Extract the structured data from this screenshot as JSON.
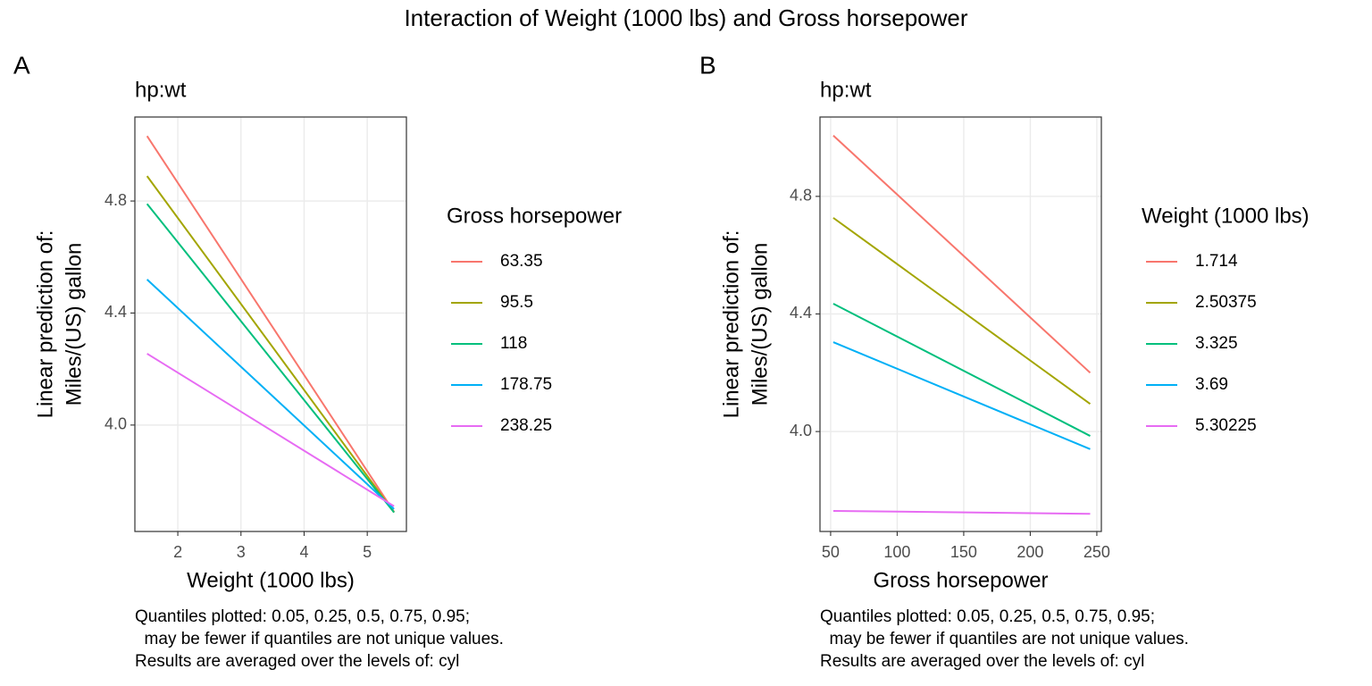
{
  "title": "Interaction of Weight (1000 lbs) and Gross horsepower",
  "chart_data": [
    {
      "type": "line",
      "tag": "A",
      "title": "hp:wt",
      "xlabel": "Weight (1000 lbs)",
      "ylabel": [
        "Linear prediction of:",
        "Miles/(US) gallon"
      ],
      "legend_title": "Gross horsepower",
      "grid": true,
      "xlim": [
        1.32,
        5.62
      ],
      "xticks": [
        2,
        3,
        4,
        5
      ],
      "ylim": [
        3.62,
        5.1
      ],
      "yticks": [
        {
          "value": 4.0,
          "label": "4.0"
        },
        {
          "value": 4.4,
          "label": "4.4"
        },
        {
          "value": 4.8,
          "label": "4.8"
        }
      ],
      "x": [
        1.513,
        5.424
      ],
      "series": [
        {
          "name": "63.35",
          "color": "#F8766D",
          "values": [
            5.032,
            3.69
          ]
        },
        {
          "name": "95.5",
          "color": "#A3A500",
          "values": [
            4.889,
            3.688
          ]
        },
        {
          "name": "118",
          "color": "#00BF7D",
          "values": [
            4.79,
            3.688
          ]
        },
        {
          "name": "178.75",
          "color": "#00B0F6",
          "values": [
            4.52,
            3.7
          ]
        },
        {
          "name": "238.25",
          "color": "#E76BF3",
          "values": [
            4.255,
            3.71
          ]
        }
      ],
      "caption": [
        "Quantiles plotted: 0.05, 0.25, 0.5, 0.75, 0.95;",
        "  may be fewer if quantiles are not unique values.",
        "Results are averaged over the levels of: cyl"
      ]
    },
    {
      "type": "line",
      "tag": "B",
      "title": "hp:wt",
      "xlabel": "Gross horsepower",
      "ylabel": [
        "Linear prediction of:",
        "Miles/(US) gallon"
      ],
      "legend_title": "Weight (1000 lbs)",
      "grid": true,
      "xlim": [
        42,
        253.4
      ],
      "xticks": [
        50,
        100,
        150,
        200,
        250
      ],
      "ylim": [
        3.66,
        5.07
      ],
      "yticks": [
        {
          "value": 4.0,
          "label": "4.0"
        },
        {
          "value": 4.4,
          "label": "4.4"
        },
        {
          "value": 4.8,
          "label": "4.8"
        }
      ],
      "x": [
        52,
        245
      ],
      "series": [
        {
          "name": "1.714",
          "color": "#F8766D",
          "values": [
            5.007,
            4.2
          ]
        },
        {
          "name": "2.50375",
          "color": "#A3A500",
          "values": [
            4.727,
            4.094
          ]
        },
        {
          "name": "3.325",
          "color": "#00BF7D",
          "values": [
            4.435,
            3.985
          ]
        },
        {
          "name": "3.69",
          "color": "#00B0F6",
          "values": [
            4.304,
            3.94
          ]
        },
        {
          "name": "5.30225",
          "color": "#E76BF3",
          "values": [
            3.73,
            3.72
          ]
        }
      ],
      "caption": [
        "Quantiles plotted: 0.05, 0.25, 0.5, 0.75, 0.95;",
        "  may be fewer if quantiles are not unique values.",
        "Results are averaged over the levels of: cyl"
      ]
    }
  ]
}
